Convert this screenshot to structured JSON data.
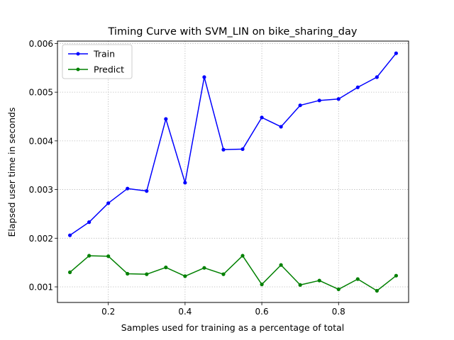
{
  "chart_data": {
    "type": "line",
    "title": "Timing Curve with SVM_LIN on bike_sharing_day",
    "xlabel": "Samples used for training as a percentage of total",
    "ylabel": "Elapsed user time in seconds",
    "xlim": [
      0.0675,
      0.9825
    ],
    "ylim": [
      0.00068,
      0.00605
    ],
    "xticks": [
      0.2,
      0.4,
      0.6,
      0.8
    ],
    "xtick_labels": [
      "0.2",
      "0.4",
      "0.6",
      "0.8"
    ],
    "yticks": [
      0.001,
      0.002,
      0.003,
      0.004,
      0.005,
      0.006
    ],
    "ytick_labels": [
      "0.001",
      "0.002",
      "0.003",
      "0.004",
      "0.005",
      "0.006"
    ],
    "grid": true,
    "legend_position": "upper-left",
    "x": [
      0.1,
      0.15,
      0.2,
      0.25,
      0.3,
      0.35,
      0.4,
      0.45,
      0.5,
      0.55,
      0.6,
      0.65,
      0.7,
      0.75,
      0.8,
      0.85,
      0.9,
      0.95
    ],
    "series": [
      {
        "name": "Train",
        "color": "#0000ff",
        "values": [
          0.00206,
          0.00233,
          0.00272,
          0.00302,
          0.00297,
          0.00445,
          0.00314,
          0.00531,
          0.00382,
          0.00383,
          0.00448,
          0.00429,
          0.00473,
          0.00483,
          0.00486,
          0.0051,
          0.00531,
          0.0058
        ]
      },
      {
        "name": "Predict",
        "color": "#008000",
        "values": [
          0.0013,
          0.00164,
          0.00163,
          0.00127,
          0.00126,
          0.0014,
          0.00122,
          0.00139,
          0.00126,
          0.00164,
          0.00105,
          0.00145,
          0.00104,
          0.00113,
          0.00095,
          0.00116,
          0.00092,
          0.00123
        ]
      }
    ]
  }
}
